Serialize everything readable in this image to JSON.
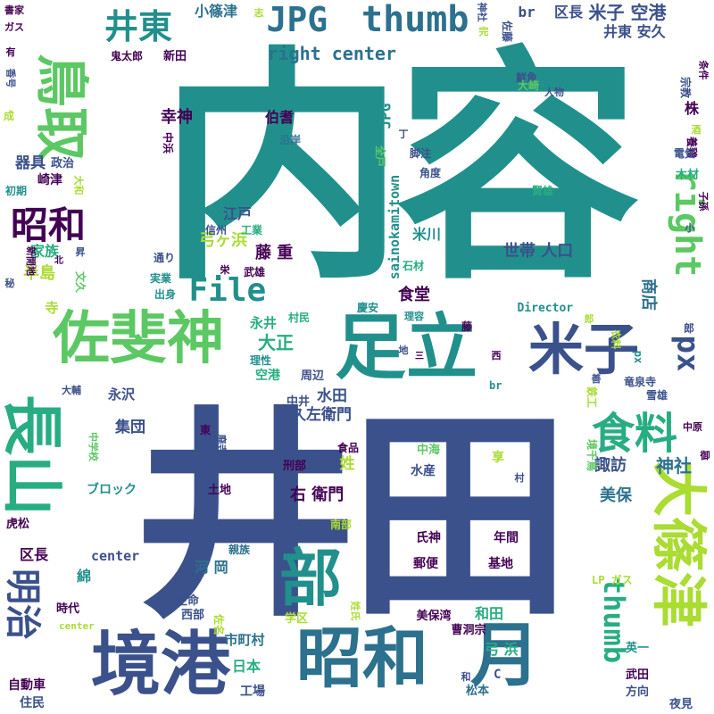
{
  "palette": {
    "dark_purple": "#440154",
    "indigo": "#3b518b",
    "blue": "#2c718e",
    "teal": "#21908d",
    "green": "#27ad81",
    "light_green": "#5cc863",
    "lime": "#aadc32",
    "yellow": "#e5e419"
  },
  "words": [
    {
      "text": "内容",
      "color": "#21908d"
    },
    {
      "text": "井田",
      "color": "#3b518b"
    },
    {
      "text": "境港",
      "color": "#3b518b"
    },
    {
      "text": "昭和",
      "color": "#2c718e"
    },
    {
      "text": "月",
      "color": "#2c718e"
    },
    {
      "text": "足立",
      "color": "#21908d"
    },
    {
      "text": "佐斐神",
      "color": "#5cc863"
    },
    {
      "text": "米子",
      "color": "#3b518b"
    },
    {
      "text": "長山",
      "color": "#27ad81"
    },
    {
      "text": "鳥取",
      "color": "#5cc863"
    },
    {
      "text": "部",
      "color": "#21908d"
    },
    {
      "text": "大篠津",
      "color": "#aadc32"
    },
    {
      "text": "thumb",
      "color": "#2c718e"
    },
    {
      "text": "File",
      "color": "#21908d"
    },
    {
      "text": "JPG",
      "color": "#2c718e"
    },
    {
      "text": "井東",
      "color": "#21908d"
    },
    {
      "text": "昭和",
      "color": "#440154"
    },
    {
      "text": "明治",
      "color": "#3b518b"
    },
    {
      "text": "食料",
      "color": "#27ad81"
    },
    {
      "text": "right",
      "color": "#5cc863"
    },
    {
      "text": "px",
      "color": "#3b518b"
    },
    {
      "text": "thumb",
      "color": "#27ad81"
    },
    {
      "text": "米子 空港",
      "color": "#3b518b"
    },
    {
      "text": "井東 安久",
      "color": "#3b518b"
    },
    {
      "text": "right center",
      "color": "#2c718e"
    },
    {
      "text": "小篠津",
      "color": "#2c718e"
    },
    {
      "text": "区長",
      "color": "#3b518b"
    },
    {
      "text": "br",
      "color": "#3b518b"
    },
    {
      "text": "株",
      "color": "#440154"
    },
    {
      "text": "諏訪",
      "color": "#3b518b"
    },
    {
      "text": "神社",
      "color": "#2c718e"
    },
    {
      "text": "美保",
      "color": "#2c718e"
    },
    {
      "text": "商店",
      "color": "#2c718e"
    },
    {
      "text": "世帯 人口",
      "color": "#3b518b"
    },
    {
      "text": "米川",
      "color": "#21908d"
    },
    {
      "text": "食堂",
      "color": "#440154"
    },
    {
      "text": "大正",
      "color": "#27ad81"
    },
    {
      "text": "藤 重",
      "color": "#440154"
    },
    {
      "text": "弓ヶ浜",
      "color": "#aadc32"
    },
    {
      "text": "江戸",
      "color": "#3b518b"
    },
    {
      "text": "幸神",
      "color": "#440154"
    },
    {
      "text": "伯耆",
      "color": "#440154"
    },
    {
      "text": "集団",
      "color": "#3b518b"
    },
    {
      "text": "久左衛門",
      "color": "#3b518b"
    },
    {
      "text": "水田",
      "color": "#3b518b"
    },
    {
      "text": "右 衛門",
      "color": "#440154"
    },
    {
      "text": "姓",
      "color": "#aadc32"
    },
    {
      "text": "sainokamitown",
      "color": "#21908d"
    },
    {
      "text": "JPG",
      "color": "#21908d"
    },
    {
      "text": "中海",
      "color": "#5cc863"
    },
    {
      "text": "水産",
      "color": "#3b518b"
    },
    {
      "text": "享",
      "color": "#aadc32"
    },
    {
      "text": "氏神",
      "color": "#440154"
    },
    {
      "text": "年間",
      "color": "#440154"
    },
    {
      "text": "郵便",
      "color": "#440154"
    },
    {
      "text": "基地",
      "color": "#440154"
    },
    {
      "text": "和田",
      "color": "#27ad81"
    },
    {
      "text": "弓 浜",
      "color": "#27ad81"
    },
    {
      "text": "河 岡",
      "color": "#2c718e"
    },
    {
      "text": "center",
      "color": "#3b518b"
    },
    {
      "text": "区長",
      "color": "#440154"
    },
    {
      "text": "綿",
      "color": "#21908d"
    },
    {
      "text": "日本",
      "color": "#27ad81"
    },
    {
      "text": "市町村",
      "color": "#2c718e"
    },
    {
      "text": "工場",
      "color": "#3b518b"
    },
    {
      "text": "自動車",
      "color": "#440154"
    },
    {
      "text": "住民",
      "color": "#3b518b"
    },
    {
      "text": "松本",
      "color": "#2c718e"
    },
    {
      "text": "武田",
      "color": "#440154"
    },
    {
      "text": "夜見",
      "color": "#3b518b"
    },
    {
      "text": "方向",
      "color": "#3b518b"
    },
    {
      "text": "英一",
      "color": "#21908d"
    },
    {
      "text": "曹洞宗",
      "color": "#440154"
    },
    {
      "text": "美保湾",
      "color": "#440154"
    },
    {
      "text": "学区",
      "color": "#aadc32"
    },
    {
      "text": "西部",
      "color": "#3b518b"
    },
    {
      "text": "生命",
      "color": "#3b518b"
    },
    {
      "text": "時代",
      "color": "#440154"
    },
    {
      "text": "center",
      "color": "#aadc32"
    },
    {
      "text": "LP ガス",
      "color": "#aadc32"
    },
    {
      "text": "Director",
      "color": "#21908d"
    },
    {
      "text": "慶安",
      "color": "#21908d"
    },
    {
      "text": "理容",
      "color": "#21908d"
    },
    {
      "text": "永井",
      "color": "#27ad81"
    },
    {
      "text": "空港",
      "color": "#27ad81"
    },
    {
      "text": "周辺",
      "color": "#3b518b"
    },
    {
      "text": "永沢",
      "color": "#3b518b"
    },
    {
      "text": "中井",
      "color": "#3b518b"
    },
    {
      "text": "食品",
      "color": "#440154"
    },
    {
      "text": "土地",
      "color": "#440154"
    },
    {
      "text": "ブロック",
      "color": "#21908d"
    },
    {
      "text": "親族",
      "color": "#2c718e"
    },
    {
      "text": "南部",
      "color": "#aadc32"
    },
    {
      "text": "刑部",
      "color": "#440154"
    },
    {
      "text": "中学校",
      "color": "#5cc863"
    },
    {
      "text": "虎松",
      "color": "#440154"
    },
    {
      "text": "大輔",
      "color": "#3b518b"
    },
    {
      "text": "寺",
      "color": "#aadc32"
    },
    {
      "text": "半島",
      "color": "#aadc32"
    },
    {
      "text": "家族",
      "color": "#27ad81"
    },
    {
      "text": "昇",
      "color": "#3b518b"
    },
    {
      "text": "新開地",
      "color": "#440154"
    },
    {
      "text": "文久",
      "color": "#5cc863"
    },
    {
      "text": "北",
      "color": "#440154"
    },
    {
      "text": "秘",
      "color": "#3b518b"
    },
    {
      "text": "器具",
      "color": "#3b518b"
    },
    {
      "text": "政治",
      "color": "#3b518b"
    },
    {
      "text": "崎津",
      "color": "#440154"
    },
    {
      "text": "大和",
      "color": "#aadc32"
    },
    {
      "text": "初期",
      "color": "#21908d"
    },
    {
      "text": "成",
      "color": "#aadc32"
    },
    {
      "text": "香号",
      "color": "#3b518b"
    },
    {
      "text": "ガス",
      "color": "#440154"
    },
    {
      "text": "書家",
      "color": "#440154"
    },
    {
      "text": "有",
      "color": "#440154"
    },
    {
      "text": "鬼太郎",
      "color": "#440154"
    },
    {
      "text": "新田",
      "color": "#440154"
    },
    {
      "text": "志",
      "color": "#aadc32"
    },
    {
      "text": "神社",
      "color": "#3b518b"
    },
    {
      "text": "完",
      "color": "#aadc32"
    },
    {
      "text": "佐藤",
      "color": "#3b518b"
    },
    {
      "text": "鮮魚",
      "color": "#3b518b"
    },
    {
      "text": "大崎",
      "color": "#5cc863"
    },
    {
      "text": "人物",
      "color": "#3b518b"
    },
    {
      "text": "宗教",
      "color": "#3b518b"
    },
    {
      "text": "条件",
      "color": "#440154"
    },
    {
      "text": "丁",
      "color": "#3b518b"
    },
    {
      "text": "脚注",
      "color": "#3b518b"
    },
    {
      "text": "酒",
      "color": "#aadc32"
    },
    {
      "text": "養鶏",
      "color": "#440154"
    },
    {
      "text": "角度",
      "color": "#3b518b"
    },
    {
      "text": "電気",
      "color": "#3b518b"
    },
    {
      "text": "木材",
      "color": "#27ad81"
    },
    {
      "text": "全戸",
      "color": "#5cc863"
    },
    {
      "text": "賢雄",
      "color": "#27ad81"
    },
    {
      "text": "子孫",
      "color": "#440154"
    },
    {
      "text": "小",
      "color": "#3b518b"
    },
    {
      "text": "沿岸",
      "color": "#2c718e"
    },
    {
      "text": "中浜",
      "color": "#440154"
    },
    {
      "text": "竜泉寺",
      "color": "#3b518b"
    },
    {
      "text": "工業",
      "color": "#27ad81"
    },
    {
      "text": "信州",
      "color": "#3b518b"
    },
    {
      "text": "実業",
      "color": "#21908d"
    },
    {
      "text": "出身",
      "color": "#21908d"
    },
    {
      "text": "武雄",
      "color": "#440154"
    },
    {
      "text": "通り",
      "color": "#3b518b"
    },
    {
      "text": "栄",
      "color": "#440154"
    },
    {
      "text": "石材",
      "color": "#27ad81"
    },
    {
      "text": "理性",
      "color": "#21908d"
    },
    {
      "text": "村民",
      "color": "#27ad81"
    },
    {
      "text": "藤",
      "color": "#440154"
    },
    {
      "text": "地",
      "color": "#3b518b"
    },
    {
      "text": "衣料",
      "color": "#aadc32"
    },
    {
      "text": "西",
      "color": "#440154"
    },
    {
      "text": "善",
      "color": "#3b518b"
    },
    {
      "text": "br",
      "color": "#21908d"
    },
    {
      "text": "雪雄",
      "color": "#3b518b"
    },
    {
      "text": "鉄工",
      "color": "#aadc32"
    },
    {
      "text": "境千鳥",
      "color": "#5cc863"
    },
    {
      "text": "中原",
      "color": "#440154"
    },
    {
      "text": "御",
      "color": "#440154"
    },
    {
      "text": "村",
      "color": "#3b518b"
    },
    {
      "text": "東",
      "color": "#440154"
    },
    {
      "text": "廃寺",
      "color": "#3b518b"
    },
    {
      "text": "C",
      "color": "#3b518b"
    },
    {
      "text": "和",
      "color": "#3b518b"
    },
    {
      "text": "佐名",
      "color": "#aadc32"
    },
    {
      "text": "姓氏",
      "color": "#aadc32"
    },
    {
      "text": "郎",
      "color": "#aadc32"
    },
    {
      "text": "郎",
      "color": "#3b518b"
    },
    {
      "text": "px",
      "color": "#21908d"
    },
    {
      "text": "三",
      "color": "#440154"
    }
  ]
}
